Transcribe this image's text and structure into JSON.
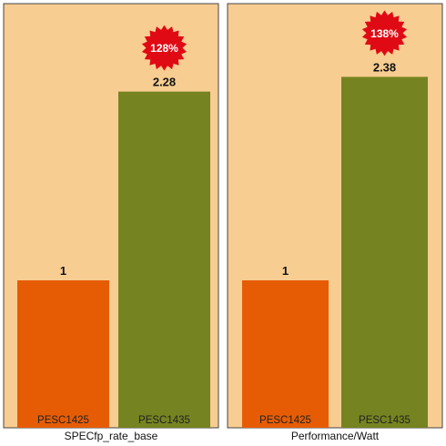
{
  "colors": {
    "background": "#f8cd92",
    "bar_a": "#e65c05",
    "bar_b": "#768321",
    "badge": "#e00a14",
    "badge_text": "#ffffff",
    "frame": "#444444"
  },
  "chart_data": [
    {
      "type": "bar",
      "xlabel": "SPECfp_rate_base",
      "categories": [
        "PESC1425",
        "PESC1435"
      ],
      "values": [
        1,
        2.28
      ],
      "value_labels": [
        "1",
        "2.28"
      ],
      "ylim": [
        0,
        2.6
      ],
      "badge": "128%",
      "grid": false
    },
    {
      "type": "bar",
      "xlabel": "Performance/Watt",
      "categories": [
        "PESC1425",
        "PESC1435"
      ],
      "values": [
        1,
        2.38
      ],
      "value_labels": [
        "1",
        "2.38"
      ],
      "ylim": [
        0,
        2.6
      ],
      "badge": "138%",
      "grid": false
    }
  ]
}
